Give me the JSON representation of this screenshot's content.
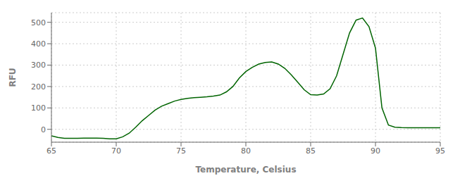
{
  "chart_data": {
    "type": "line",
    "xlabel": "Temperature, Celsius",
    "ylabel": "RFU",
    "x": [
      65.0,
      65.5,
      66.0,
      66.5,
      67.0,
      67.5,
      68.0,
      68.5,
      69.0,
      69.5,
      70.0,
      70.5,
      71.0,
      71.5,
      72.0,
      72.5,
      73.0,
      73.5,
      74.0,
      74.5,
      75.0,
      75.5,
      76.0,
      76.5,
      77.0,
      77.5,
      78.0,
      78.5,
      79.0,
      79.5,
      80.0,
      80.5,
      81.0,
      81.5,
      82.0,
      82.5,
      83.0,
      83.5,
      84.0,
      84.5,
      85.0,
      85.5,
      86.0,
      86.5,
      87.0,
      87.5,
      88.0,
      88.5,
      89.0,
      89.5,
      90.0,
      90.5,
      91.0,
      91.5,
      92.0,
      92.5,
      93.0,
      93.5,
      94.0,
      94.5,
      95.0
    ],
    "values": [
      -30,
      -38,
      -42,
      -42,
      -42,
      -41,
      -41,
      -41,
      -42,
      -44,
      -44,
      -35,
      -18,
      10,
      40,
      65,
      90,
      108,
      120,
      132,
      140,
      145,
      148,
      150,
      152,
      155,
      160,
      175,
      200,
      240,
      270,
      290,
      305,
      312,
      315,
      305,
      285,
      255,
      220,
      185,
      162,
      160,
      165,
      190,
      250,
      350,
      450,
      510,
      520,
      480,
      380,
      100,
      20,
      10,
      8,
      7,
      7,
      7,
      7,
      7,
      7
    ],
    "color": "#006400",
    "xlim": [
      65,
      95
    ],
    "ylim": [
      -60,
      545
    ],
    "xticks": [
      65,
      70,
      75,
      80,
      85,
      90,
      95
    ],
    "yticks": [
      0,
      100,
      200,
      300,
      400,
      500
    ],
    "grid": true
  }
}
